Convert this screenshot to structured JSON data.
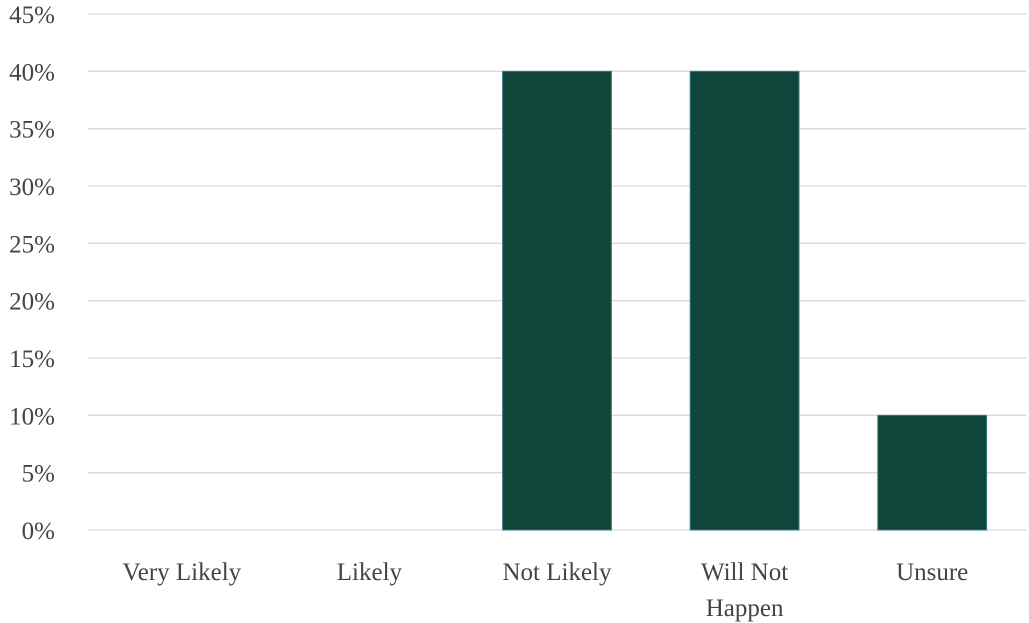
{
  "chart_data": {
    "type": "bar",
    "title": "",
    "xlabel": "",
    "ylabel": "",
    "categories": [
      "Very Likely",
      "Likely",
      "Not Likely",
      "Will Not Happen",
      "Unsure"
    ],
    "category_lines": [
      [
        "Very Likely"
      ],
      [
        "Likely"
      ],
      [
        "Not Likely"
      ],
      [
        "Will Not",
        "Happen"
      ],
      [
        "Unsure"
      ]
    ],
    "values": [
      0,
      0,
      40,
      40,
      10
    ],
    "ylim": [
      0,
      45
    ],
    "y_ticks": [
      0,
      5,
      10,
      15,
      20,
      25,
      30,
      35,
      40,
      45
    ],
    "y_tick_labels": [
      "0%",
      "5%",
      "10%",
      "15%",
      "20%",
      "25%",
      "30%",
      "35%",
      "40%",
      "45%"
    ],
    "grid": true,
    "legend": "none",
    "bar_color": "#10453a"
  }
}
